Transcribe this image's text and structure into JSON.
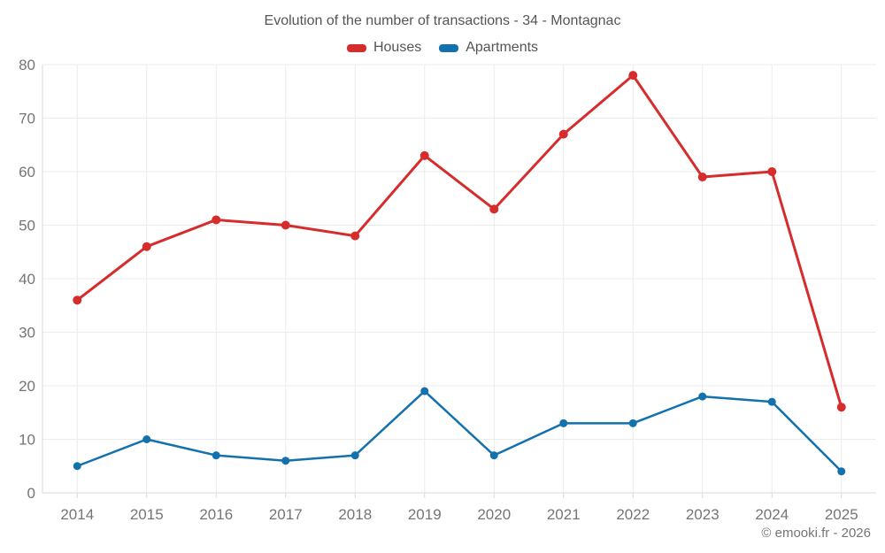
{
  "header": {
    "title": "Evolution of the number of transactions - 34 - Montagnac"
  },
  "legend": [
    {
      "label": "Houses",
      "color": "#d62c2c"
    },
    {
      "label": "Apartments",
      "color": "#1371ad"
    }
  ],
  "chart_data": {
    "type": "line",
    "title": "Evolution of the number of transactions - 34 - Montagnac",
    "categories": [
      "2014",
      "2015",
      "2016",
      "2017",
      "2018",
      "2019",
      "2020",
      "2021",
      "2022",
      "2023",
      "2024",
      "2025"
    ],
    "series": [
      {
        "name": "Houses",
        "color": "#d62c2c",
        "line_width": 3,
        "marker_radius": 5,
        "values": [
          36,
          46,
          51,
          50,
          48,
          63,
          53,
          67,
          78,
          59,
          60,
          16
        ]
      },
      {
        "name": "Apartments",
        "color": "#1371ad",
        "line_width": 2.5,
        "marker_radius": 4.5,
        "values": [
          5,
          10,
          7,
          6,
          7,
          19,
          7,
          13,
          13,
          18,
          17,
          4
        ]
      }
    ],
    "xlabel": "",
    "ylabel": "",
    "ylim": [
      0,
      80
    ],
    "y_ticks": [
      0,
      10,
      20,
      30,
      40,
      50,
      60,
      70,
      80
    ],
    "grid": true,
    "legend_position": "top",
    "colors": {
      "grid": "#ebebeb",
      "axis": "#d9d9d9",
      "axis_text": "#757575",
      "title_text": "#555555"
    }
  },
  "footer": {
    "credit": "© emooki.fr - 2026"
  }
}
